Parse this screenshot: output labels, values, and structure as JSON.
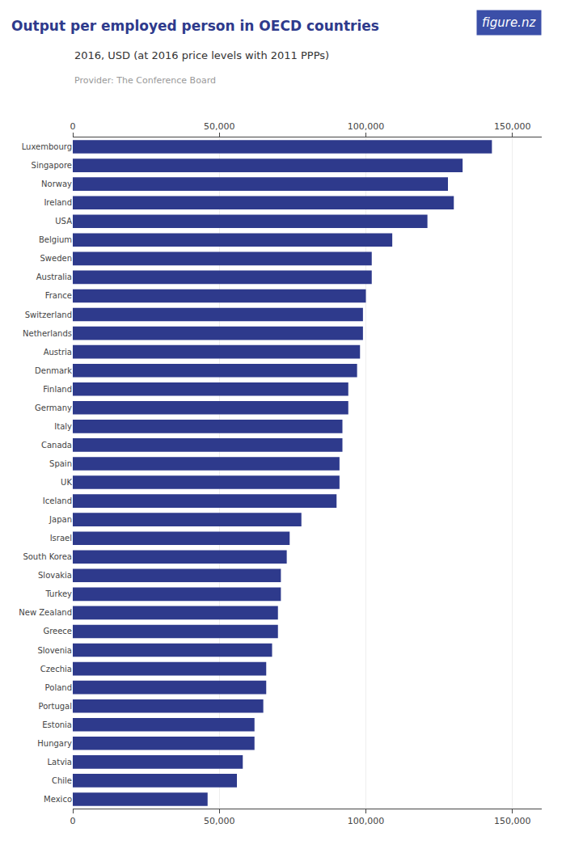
{
  "chart_data": {
    "type": "bar",
    "orientation": "horizontal",
    "title": "Output per employed person in OECD countries",
    "subtitle": "2016, USD (at 2016 price levels with 2011 PPPs)",
    "annotations": [
      {
        "text": "Provider: The Conference Board"
      },
      {
        "text": "figure.nz",
        "color": "#3B4FA8"
      }
    ],
    "color": "#2E3A8C",
    "grid": true,
    "xlim": [
      0,
      160000
    ],
    "xticks": [
      0,
      {
        "value": 50000,
        "label": "50,000"
      },
      {
        "value": 100000,
        "label": "100,000"
      },
      {
        "value": 150000,
        "label": "150,000"
      }
    ],
    "categories": [
      "Luxembourg",
      "Singapore",
      "Norway",
      "Ireland",
      "USA",
      "Belgium",
      "Sweden",
      "Australia",
      "France",
      "Switzerland",
      "Netherlands",
      "Austria",
      "Denmark",
      "Finland",
      "Germany",
      "Italy",
      "Canada",
      "Spain",
      "UK",
      "Iceland",
      "Japan",
      "Israel",
      "South Korea",
      "Slovakia",
      "Turkey",
      "New Zealand",
      "Greece",
      "Slovenia",
      "Czechia",
      "Poland",
      "Portugal",
      "Estonia",
      "Hungary",
      "Latvia",
      "Chile",
      "Mexico"
    ],
    "values": [
      143000,
      133000,
      128000,
      130000,
      121000,
      109000,
      102000,
      102000,
      100000,
      99000,
      99000,
      98000,
      97000,
      94000,
      94000,
      92000,
      92000,
      91000,
      91000,
      90000,
      78000,
      74000,
      73000,
      71000,
      71000,
      70000,
      70000,
      68000,
      66000,
      66000,
      65000,
      62000,
      62000,
      58000,
      56000,
      46000
    ]
  }
}
